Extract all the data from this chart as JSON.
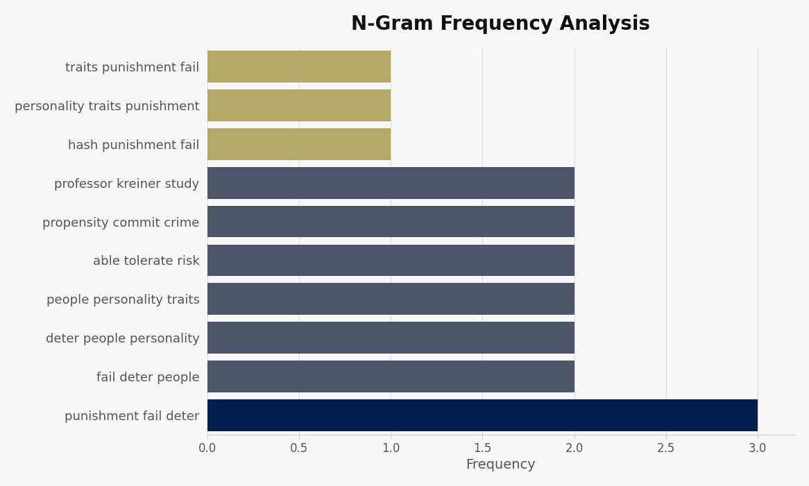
{
  "title": "N-Gram Frequency Analysis",
  "xlabel": "Frequency",
  "categories": [
    "traits punishment fail",
    "personality traits punishment",
    "hash punishment fail",
    "professor kreiner study",
    "propensity commit crime",
    "able tolerate risk",
    "people personality traits",
    "deter people personality",
    "fail deter people",
    "punishment fail deter"
  ],
  "values": [
    1,
    1,
    1,
    2,
    2,
    2,
    2,
    2,
    2,
    3
  ],
  "bar_colors": [
    "#b5a96a",
    "#b5a96a",
    "#b5a96a",
    "#4e5568",
    "#4e5568",
    "#4e5568",
    "#4e5568",
    "#4e5568",
    "#4e5568",
    "#001f4e"
  ],
  "xlim": [
    0,
    3.2
  ],
  "xticks": [
    0.0,
    0.5,
    1.0,
    1.5,
    2.0,
    2.5,
    3.0
  ],
  "background_color": "#f7f7f7",
  "title_fontsize": 20,
  "label_fontsize": 13,
  "tick_fontsize": 12,
  "bar_height": 0.82,
  "label_color": "#555555",
  "title_color": "#111111",
  "grid_color": "#dddddd",
  "spine_color": "#cccccc"
}
